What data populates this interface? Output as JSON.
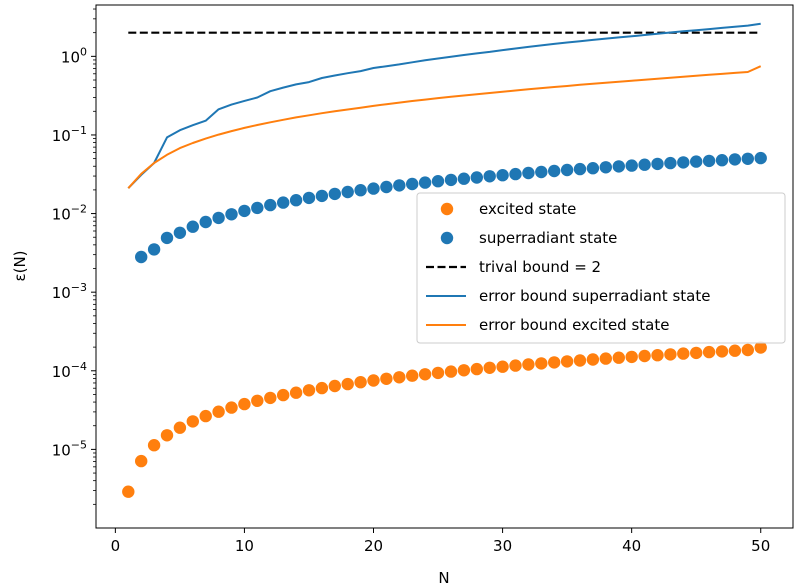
{
  "chart_data": {
    "type": "line",
    "title": "",
    "xlabel": "N",
    "ylabel": "ε(N)",
    "yscale": "log",
    "xlim": [
      -1.5,
      52.5
    ],
    "ylim": [
      1e-06,
      4.5
    ],
    "xticks": [
      0,
      10,
      20,
      30,
      40,
      50
    ],
    "xtick_labels": [
      "0",
      "10",
      "20",
      "30",
      "40",
      "50"
    ],
    "yticks": [
      1e-05,
      0.0001,
      0.001,
      0.01,
      0.1,
      1
    ],
    "ytick_labels": [
      {
        "base": "10",
        "exp": "−5"
      },
      {
        "base": "10",
        "exp": "−4"
      },
      {
        "base": "10",
        "exp": "−3"
      },
      {
        "base": "10",
        "exp": "−2"
      },
      {
        "base": "10",
        "exp": "−1"
      },
      {
        "base": "10",
        "exp": "0"
      }
    ],
    "grid": false,
    "legend_position": "center-right",
    "series": [
      {
        "name": "excited state",
        "kind": "scatter",
        "color": "#ff7f0e",
        "x": [
          1,
          2,
          3,
          4,
          5,
          6,
          7,
          8,
          9,
          10,
          11,
          12,
          13,
          14,
          15,
          16,
          17,
          18,
          19,
          20,
          21,
          22,
          23,
          24,
          25,
          26,
          27,
          28,
          29,
          30,
          31,
          32,
          33,
          34,
          35,
          36,
          37,
          38,
          39,
          40,
          41,
          42,
          43,
          44,
          45,
          46,
          47,
          48,
          49,
          50
        ],
        "y": [
          2.9e-06,
          7.1e-06,
          1.13e-05,
          1.51e-05,
          1.89e-05,
          2.27e-05,
          2.65e-05,
          3.02e-05,
          3.4e-05,
          3.77e-05,
          4.15e-05,
          4.52e-05,
          4.9e-05,
          5.27e-05,
          5.65e-05,
          6.02e-05,
          6.4e-05,
          6.77e-05,
          7.15e-05,
          7.52e-05,
          7.9e-05,
          8.27e-05,
          8.65e-05,
          9.02e-05,
          9.4e-05,
          9.77e-05,
          0.0001015,
          0.0001052,
          0.000109,
          0.0001127,
          0.0001165,
          0.0001202,
          0.000124,
          0.0001277,
          0.0001315,
          0.0001352,
          0.000139,
          0.0001427,
          0.0001465,
          0.0001502,
          0.000154,
          0.0001577,
          0.0001615,
          0.0001652,
          0.000169,
          0.0001727,
          0.0001765,
          0.0001802,
          0.000184,
          0.000198
        ]
      },
      {
        "name": "superradiant state",
        "kind": "scatter",
        "color": "#1f77b4",
        "x": [
          2,
          3,
          4,
          5,
          6,
          7,
          8,
          9,
          10,
          11,
          12,
          13,
          14,
          15,
          16,
          17,
          18,
          19,
          20,
          21,
          22,
          23,
          24,
          25,
          26,
          27,
          28,
          29,
          30,
          31,
          32,
          33,
          34,
          35,
          36,
          37,
          38,
          39,
          40,
          41,
          42,
          43,
          44,
          45,
          46,
          47,
          48,
          49,
          50
        ],
        "y": [
          0.0028,
          0.0035,
          0.0049,
          0.0057,
          0.0068,
          0.0078,
          0.0088,
          0.0098,
          0.0108,
          0.0118,
          0.0128,
          0.0138,
          0.0148,
          0.0158,
          0.0168,
          0.0178,
          0.0188,
          0.0198,
          0.0208,
          0.0218,
          0.0228,
          0.0238,
          0.0248,
          0.0258,
          0.0268,
          0.0278,
          0.0288,
          0.0298,
          0.0308,
          0.0318,
          0.0328,
          0.0338,
          0.0348,
          0.0358,
          0.0368,
          0.0378,
          0.0388,
          0.0398,
          0.0408,
          0.0418,
          0.0428,
          0.0438,
          0.0448,
          0.0458,
          0.0468,
          0.0478,
          0.0488,
          0.0498,
          0.0508
        ]
      },
      {
        "name": "trival bound = 2",
        "kind": "line",
        "dash": true,
        "color": "#000000",
        "x": [
          1,
          50
        ],
        "y": [
          2,
          2
        ]
      },
      {
        "name": "error bound superradiant state",
        "kind": "line",
        "color": "#1f77b4",
        "x": [
          1,
          2,
          3,
          4,
          5,
          6,
          7,
          8,
          9,
          10,
          11,
          12,
          13,
          14,
          15,
          16,
          17,
          18,
          19,
          20,
          21,
          22,
          23,
          24,
          25,
          26,
          27,
          28,
          29,
          30,
          31,
          32,
          33,
          34,
          35,
          36,
          37,
          38,
          39,
          40,
          41,
          42,
          43,
          44,
          45,
          46,
          47,
          48,
          49,
          50
        ],
        "y": [
          0.021,
          0.031,
          0.044,
          0.093,
          0.115,
          0.133,
          0.152,
          0.212,
          0.243,
          0.271,
          0.3,
          0.36,
          0.4,
          0.44,
          0.47,
          0.53,
          0.57,
          0.61,
          0.65,
          0.71,
          0.75,
          0.79,
          0.84,
          0.89,
          0.94,
          0.99,
          1.04,
          1.09,
          1.14,
          1.2,
          1.26,
          1.32,
          1.38,
          1.44,
          1.5,
          1.56,
          1.62,
          1.68,
          1.74,
          1.8,
          1.87,
          1.94,
          2.01,
          2.08,
          2.15,
          2.22,
          2.3,
          2.38,
          2.46,
          2.6
        ]
      },
      {
        "name": "error bound excited state",
        "kind": "line",
        "color": "#ff7f0e",
        "x": [
          1,
          2,
          3,
          4,
          5,
          6,
          7,
          8,
          9,
          10,
          11,
          12,
          13,
          14,
          15,
          16,
          17,
          18,
          19,
          20,
          21,
          22,
          23,
          24,
          25,
          26,
          27,
          28,
          29,
          30,
          31,
          32,
          33,
          34,
          35,
          36,
          37,
          38,
          39,
          40,
          41,
          42,
          43,
          44,
          45,
          46,
          47,
          48,
          49,
          50
        ],
        "y": [
          0.021,
          0.032,
          0.044,
          0.056,
          0.068,
          0.079,
          0.09,
          0.101,
          0.112,
          0.123,
          0.134,
          0.145,
          0.156,
          0.167,
          0.178,
          0.189,
          0.2,
          0.211,
          0.222,
          0.234,
          0.246,
          0.258,
          0.27,
          0.282,
          0.294,
          0.306,
          0.318,
          0.33,
          0.342,
          0.355,
          0.368,
          0.381,
          0.394,
          0.407,
          0.42,
          0.434,
          0.448,
          0.462,
          0.476,
          0.49,
          0.505,
          0.52,
          0.535,
          0.55,
          0.566,
          0.582,
          0.598,
          0.615,
          0.632,
          0.75
        ]
      }
    ]
  }
}
